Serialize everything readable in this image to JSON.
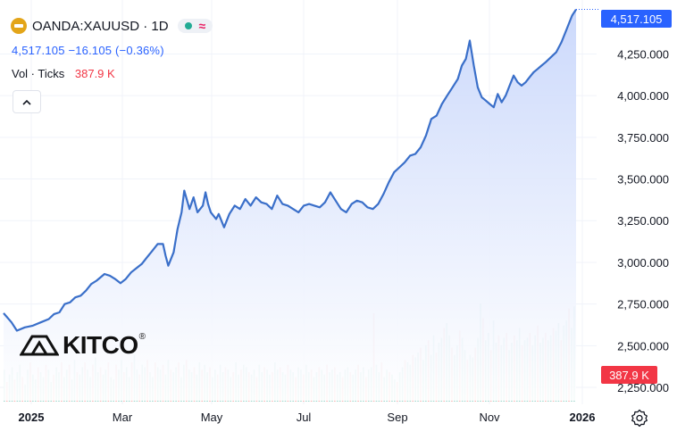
{
  "legend": {
    "symbol": "OANDA:XAUUSD · 1D",
    "quote": "4,517.105  −16.105 (−0.36%)",
    "vol_label": "Vol · Ticks",
    "vol_value": "387.9 K"
  },
  "badges": {
    "last_price": "4,517.105",
    "last_volume": "387.9 K"
  },
  "logo": {
    "text": "KITCO",
    "reg": "®"
  },
  "colors": {
    "line": "#3a6fc9",
    "area_top": "#c9d7fb",
    "area_bottom": "#ffffff",
    "vol_up": "#8fd0c4",
    "vol_down": "#f4a6a6",
    "last_price": "#2962ff",
    "last_volume": "#f23645"
  },
  "icons": {
    "collapse": "chevron-up-icon",
    "settings": "gear-icon",
    "symbol_logo": "gold-bar-icon"
  },
  "chart_data": {
    "type": "area",
    "title": "",
    "xlabel": "",
    "ylabel": "",
    "x_ticks": [
      "2025",
      "Mar",
      "May",
      "Jul",
      "Sep",
      "Nov",
      "2026"
    ],
    "y_ticks": [
      "4,250.000",
      "4,000.000",
      "3,750.000",
      "3,500.000",
      "3,250.000",
      "3,000.000",
      "2,750.000",
      "2,500.000",
      "2,250.000"
    ],
    "ylim": [
      2170,
      4520
    ],
    "grid": true,
    "series": [
      {
        "values": [
          [
            0,
            2695
          ],
          [
            0.3,
            2640
          ],
          [
            0.5,
            2590
          ],
          [
            0.8,
            2610
          ],
          [
            1.1,
            2620
          ],
          [
            1.4,
            2640
          ],
          [
            1.7,
            2660
          ],
          [
            1.9,
            2690
          ],
          [
            2.1,
            2700
          ],
          [
            2.3,
            2750
          ],
          [
            2.5,
            2760
          ],
          [
            2.7,
            2790
          ],
          [
            2.9,
            2800
          ],
          [
            3.1,
            2830
          ],
          [
            3.3,
            2870
          ],
          [
            3.5,
            2890
          ],
          [
            3.8,
            2930
          ],
          [
            4.0,
            2920
          ],
          [
            4.2,
            2900
          ],
          [
            4.4,
            2875
          ],
          [
            4.6,
            2900
          ],
          [
            4.8,
            2940
          ],
          [
            5.0,
            2965
          ],
          [
            5.2,
            2990
          ],
          [
            5.4,
            3030
          ],
          [
            5.6,
            3070
          ],
          [
            5.8,
            3110
          ],
          [
            6.0,
            3110
          ],
          [
            6.1,
            3040
          ],
          [
            6.2,
            2980
          ],
          [
            6.4,
            3060
          ],
          [
            6.55,
            3200
          ],
          [
            6.7,
            3300
          ],
          [
            6.8,
            3430
          ],
          [
            7.0,
            3320
          ],
          [
            7.15,
            3390
          ],
          [
            7.3,
            3300
          ],
          [
            7.5,
            3340
          ],
          [
            7.6,
            3420
          ],
          [
            7.7,
            3350
          ],
          [
            7.8,
            3300
          ],
          [
            8.0,
            3260
          ],
          [
            8.1,
            3290
          ],
          [
            8.3,
            3210
          ],
          [
            8.5,
            3290
          ],
          [
            8.7,
            3340
          ],
          [
            8.9,
            3320
          ],
          [
            9.1,
            3380
          ],
          [
            9.3,
            3340
          ],
          [
            9.5,
            3390
          ],
          [
            9.7,
            3360
          ],
          [
            9.9,
            3350
          ],
          [
            10.1,
            3320
          ],
          [
            10.3,
            3400
          ],
          [
            10.5,
            3350
          ],
          [
            10.7,
            3340
          ],
          [
            10.9,
            3320
          ],
          [
            11.1,
            3300
          ],
          [
            11.3,
            3340
          ],
          [
            11.5,
            3350
          ],
          [
            11.7,
            3340
          ],
          [
            11.9,
            3330
          ],
          [
            12.1,
            3360
          ],
          [
            12.3,
            3420
          ],
          [
            12.5,
            3370
          ],
          [
            12.7,
            3320
          ],
          [
            12.9,
            3300
          ],
          [
            13.1,
            3350
          ],
          [
            13.3,
            3370
          ],
          [
            13.5,
            3360
          ],
          [
            13.7,
            3330
          ],
          [
            13.9,
            3320
          ],
          [
            14.1,
            3350
          ],
          [
            14.3,
            3410
          ],
          [
            14.5,
            3480
          ],
          [
            14.7,
            3540
          ],
          [
            14.9,
            3570
          ],
          [
            15.1,
            3600
          ],
          [
            15.3,
            3640
          ],
          [
            15.5,
            3650
          ],
          [
            15.7,
            3690
          ],
          [
            15.9,
            3760
          ],
          [
            16.1,
            3860
          ],
          [
            16.3,
            3880
          ],
          [
            16.5,
            3950
          ],
          [
            16.7,
            4000
          ],
          [
            16.9,
            4050
          ],
          [
            17.1,
            4100
          ],
          [
            17.25,
            4180
          ],
          [
            17.4,
            4220
          ],
          [
            17.55,
            4330
          ],
          [
            17.7,
            4180
          ],
          [
            17.85,
            4050
          ],
          [
            18.0,
            3990
          ],
          [
            18.15,
            3970
          ],
          [
            18.3,
            3950
          ],
          [
            18.45,
            3930
          ],
          [
            18.6,
            4010
          ],
          [
            18.75,
            3960
          ],
          [
            18.9,
            4000
          ],
          [
            19.05,
            4060
          ],
          [
            19.2,
            4120
          ],
          [
            19.35,
            4080
          ],
          [
            19.5,
            4060
          ],
          [
            19.65,
            4080
          ],
          [
            19.8,
            4110
          ],
          [
            19.95,
            4140
          ],
          [
            20.1,
            4160
          ],
          [
            20.25,
            4180
          ],
          [
            20.4,
            4200
          ],
          [
            20.6,
            4230
          ],
          [
            20.8,
            4260
          ],
          [
            21.0,
            4320
          ],
          [
            21.2,
            4400
          ],
          [
            21.4,
            4480
          ],
          [
            21.55,
            4517
          ]
        ]
      }
    ],
    "volume_max_k": 400,
    "volume": [
      130,
      80,
      110,
      140,
      90,
      120,
      150,
      100,
      70,
      130,
      160,
      110,
      90,
      140,
      120,
      100,
      150,
      130,
      80,
      110,
      140,
      120,
      160,
      100,
      130,
      150,
      90,
      170,
      120,
      110,
      140,
      160,
      130,
      100,
      150,
      180,
      120,
      140,
      110,
      130,
      160,
      100,
      90,
      150,
      130,
      170,
      120,
      140,
      100,
      160,
      190,
      130,
      110,
      150,
      140,
      170,
      120,
      100,
      160,
      140,
      130,
      150,
      110,
      170,
      130,
      120,
      140,
      160,
      100,
      150,
      170,
      130,
      120,
      140,
      110,
      160,
      130,
      150,
      120,
      140,
      100,
      130,
      110,
      150,
      120,
      140,
      130,
      100,
      120,
      160,
      110,
      130,
      150,
      140,
      120,
      110,
      130,
      100,
      150,
      120,
      140,
      130,
      110,
      120,
      160,
      130,
      140,
      120,
      110,
      150,
      130,
      120,
      100,
      140,
      130,
      110,
      150,
      120,
      130,
      100,
      120,
      140,
      130,
      110,
      150,
      120,
      130,
      140,
      110,
      120,
      100,
      130,
      140,
      120,
      110,
      130,
      150,
      120,
      140,
      100,
      130,
      140,
      360,
      150,
      120,
      160,
      100,
      130,
      120,
      110,
      90,
      80,
      120,
      140,
      170,
      160,
      150,
      190,
      180,
      200,
      220,
      170,
      230,
      250,
      190,
      270,
      200,
      240,
      260,
      300,
      320,
      270,
      220,
      190,
      230,
      290,
      260,
      210,
      170,
      190,
      180,
      220,
      260,
      400,
      340,
      250,
      280,
      210,
      330,
      240,
      270,
      230,
      260,
      280,
      210,
      240,
      270,
      250,
      300,
      230,
      250,
      260,
      280,
      230,
      270,
      310,
      240,
      260,
      280,
      250,
      270,
      300,
      290,
      320,
      250,
      310,
      330,
      380,
      300,
      388
    ],
    "volume_up_mask": "alternating"
  }
}
